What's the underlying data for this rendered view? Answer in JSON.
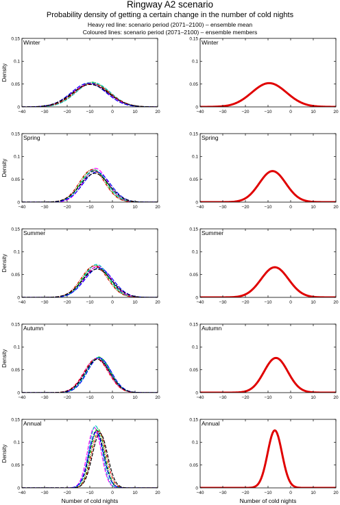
{
  "title": "Ringway A2 scenario",
  "subtitle": "Probability density of getting a certain change in the number of cold nights",
  "notes": [
    "Heavy red line: scenario period (2071–2100) – ensemble mean",
    "Coloured lines: scenario period (2071–2100) – ensemble members"
  ],
  "colors": {
    "mean": "#e00000",
    "members": [
      "#000000",
      "#00c000",
      "#ff00ff",
      "#00c0c0",
      "#e00000",
      "#0000ff",
      "#000000"
    ]
  },
  "chart_data": [
    {
      "type": "line",
      "xlabel": "",
      "ylabel": "Density",
      "xlim": [
        -40,
        20
      ],
      "ylim": [
        0,
        0.15
      ],
      "xticks": [
        "−40",
        "−30",
        "−20",
        "−10",
        "0",
        "10",
        "20"
      ],
      "yticks": [
        "0",
        "0.05",
        "0.1",
        "0.15"
      ],
      "grid": false,
      "legend": "none",
      "panels": [
        {
          "season": "Winter",
          "view": "ensemble members",
          "series": [
            {
              "mean": -9.5,
              "peak": 0.052
            },
            {
              "mean": -9.0,
              "peak": 0.054
            },
            {
              "mean": -10.0,
              "peak": 0.05
            },
            {
              "mean": -8.5,
              "peak": 0.053
            },
            {
              "mean": -9.0,
              "peak": 0.051
            },
            {
              "mean": -10.5,
              "peak": 0.052
            },
            {
              "mean": -9.8,
              "peak": 0.049
            }
          ]
        },
        {
          "season": "Winter",
          "view": "ensemble mean",
          "series": [
            {
              "mean": -9.5,
              "peak": 0.052
            }
          ]
        }
      ]
    },
    {
      "type": "line",
      "xlabel": "",
      "ylabel": "Density",
      "xlim": [
        -40,
        20
      ],
      "ylim": [
        0,
        0.15
      ],
      "xticks": [
        "−40",
        "−30",
        "−20",
        "−10",
        "0",
        "10",
        "20"
      ],
      "yticks": [
        "0",
        "0.05",
        "0.1",
        "0.15"
      ],
      "grid": false,
      "legend": "none",
      "panels": [
        {
          "season": "Spring",
          "view": "ensemble members",
          "series": [
            {
              "mean": -8.0,
              "peak": 0.068
            },
            {
              "mean": -8.5,
              "peak": 0.072
            },
            {
              "mean": -7.5,
              "peak": 0.074
            },
            {
              "mean": -8.0,
              "peak": 0.07
            },
            {
              "mean": -9.0,
              "peak": 0.071
            },
            {
              "mean": -7.0,
              "peak": 0.066
            },
            {
              "mean": -7.8,
              "peak": 0.063
            }
          ]
        },
        {
          "season": "Spring",
          "view": "ensemble mean",
          "series": [
            {
              "mean": -8.0,
              "peak": 0.068
            }
          ]
        }
      ]
    },
    {
      "type": "line",
      "xlabel": "",
      "ylabel": "Density",
      "xlim": [
        -40,
        20
      ],
      "ylim": [
        0,
        0.15
      ],
      "xticks": [
        "−40",
        "−30",
        "−20",
        "−10",
        "0",
        "10",
        "20"
      ],
      "yticks": [
        "0",
        "0.05",
        "0.1",
        "0.15"
      ],
      "grid": false,
      "legend": "none",
      "panels": [
        {
          "season": "Summer",
          "view": "ensemble members",
          "series": [
            {
              "mean": -7.0,
              "peak": 0.066
            },
            {
              "mean": -7.5,
              "peak": 0.07
            },
            {
              "mean": -6.5,
              "peak": 0.068
            },
            {
              "mean": -7.0,
              "peak": 0.072
            },
            {
              "mean": -8.0,
              "peak": 0.069
            },
            {
              "mean": -6.0,
              "peak": 0.064
            },
            {
              "mean": -6.8,
              "peak": 0.062
            }
          ]
        },
        {
          "season": "Summer",
          "view": "ensemble mean",
          "series": [
            {
              "mean": -7.0,
              "peak": 0.066
            }
          ]
        }
      ]
    },
    {
      "type": "line",
      "xlabel": "",
      "ylabel": "Density",
      "xlim": [
        -40,
        20
      ],
      "ylim": [
        0,
        0.15
      ],
      "xticks": [
        "−40",
        "−30",
        "−20",
        "−10",
        "0",
        "10",
        "20"
      ],
      "yticks": [
        "0",
        "0.05",
        "0.1",
        "0.15"
      ],
      "grid": false,
      "legend": "none",
      "panels": [
        {
          "season": "Autumn",
          "view": "ensemble members",
          "series": [
            {
              "mean": -6.5,
              "peak": 0.076
            },
            {
              "mean": -6.0,
              "peak": 0.078
            },
            {
              "mean": -7.0,
              "peak": 0.075
            },
            {
              "mean": -6.3,
              "peak": 0.077
            },
            {
              "mean": -7.2,
              "peak": 0.074
            },
            {
              "mean": -5.8,
              "peak": 0.076
            },
            {
              "mean": -6.6,
              "peak": 0.073
            }
          ]
        },
        {
          "season": "Autumn",
          "view": "ensemble mean",
          "series": [
            {
              "mean": -6.5,
              "peak": 0.076
            }
          ]
        }
      ]
    },
    {
      "type": "line",
      "xlabel": "Number of cold nights",
      "ylabel": "Density",
      "xlim": [
        -40,
        20
      ],
      "ylim": [
        0,
        0.15
      ],
      "xticks": [
        "−40",
        "−30",
        "−20",
        "−10",
        "0",
        "10",
        "20"
      ],
      "yticks": [
        "0",
        "0.05",
        "0.1",
        "0.15"
      ],
      "grid": false,
      "legend": "none",
      "panels": [
        {
          "season": "Annual",
          "view": "ensemble members",
          "series": [
            {
              "mean": -7.0,
              "peak": 0.126
            },
            {
              "mean": -6.5,
              "peak": 0.13
            },
            {
              "mean": -8.0,
              "peak": 0.132
            },
            {
              "mean": -7.5,
              "peak": 0.136
            },
            {
              "mean": -6.0,
              "peak": 0.124
            },
            {
              "mean": -7.2,
              "peak": 0.122
            },
            {
              "mean": -5.5,
              "peak": 0.12
            }
          ]
        },
        {
          "season": "Annual",
          "view": "ensemble mean",
          "series": [
            {
              "mean": -7.0,
              "peak": 0.126
            }
          ]
        }
      ]
    }
  ]
}
